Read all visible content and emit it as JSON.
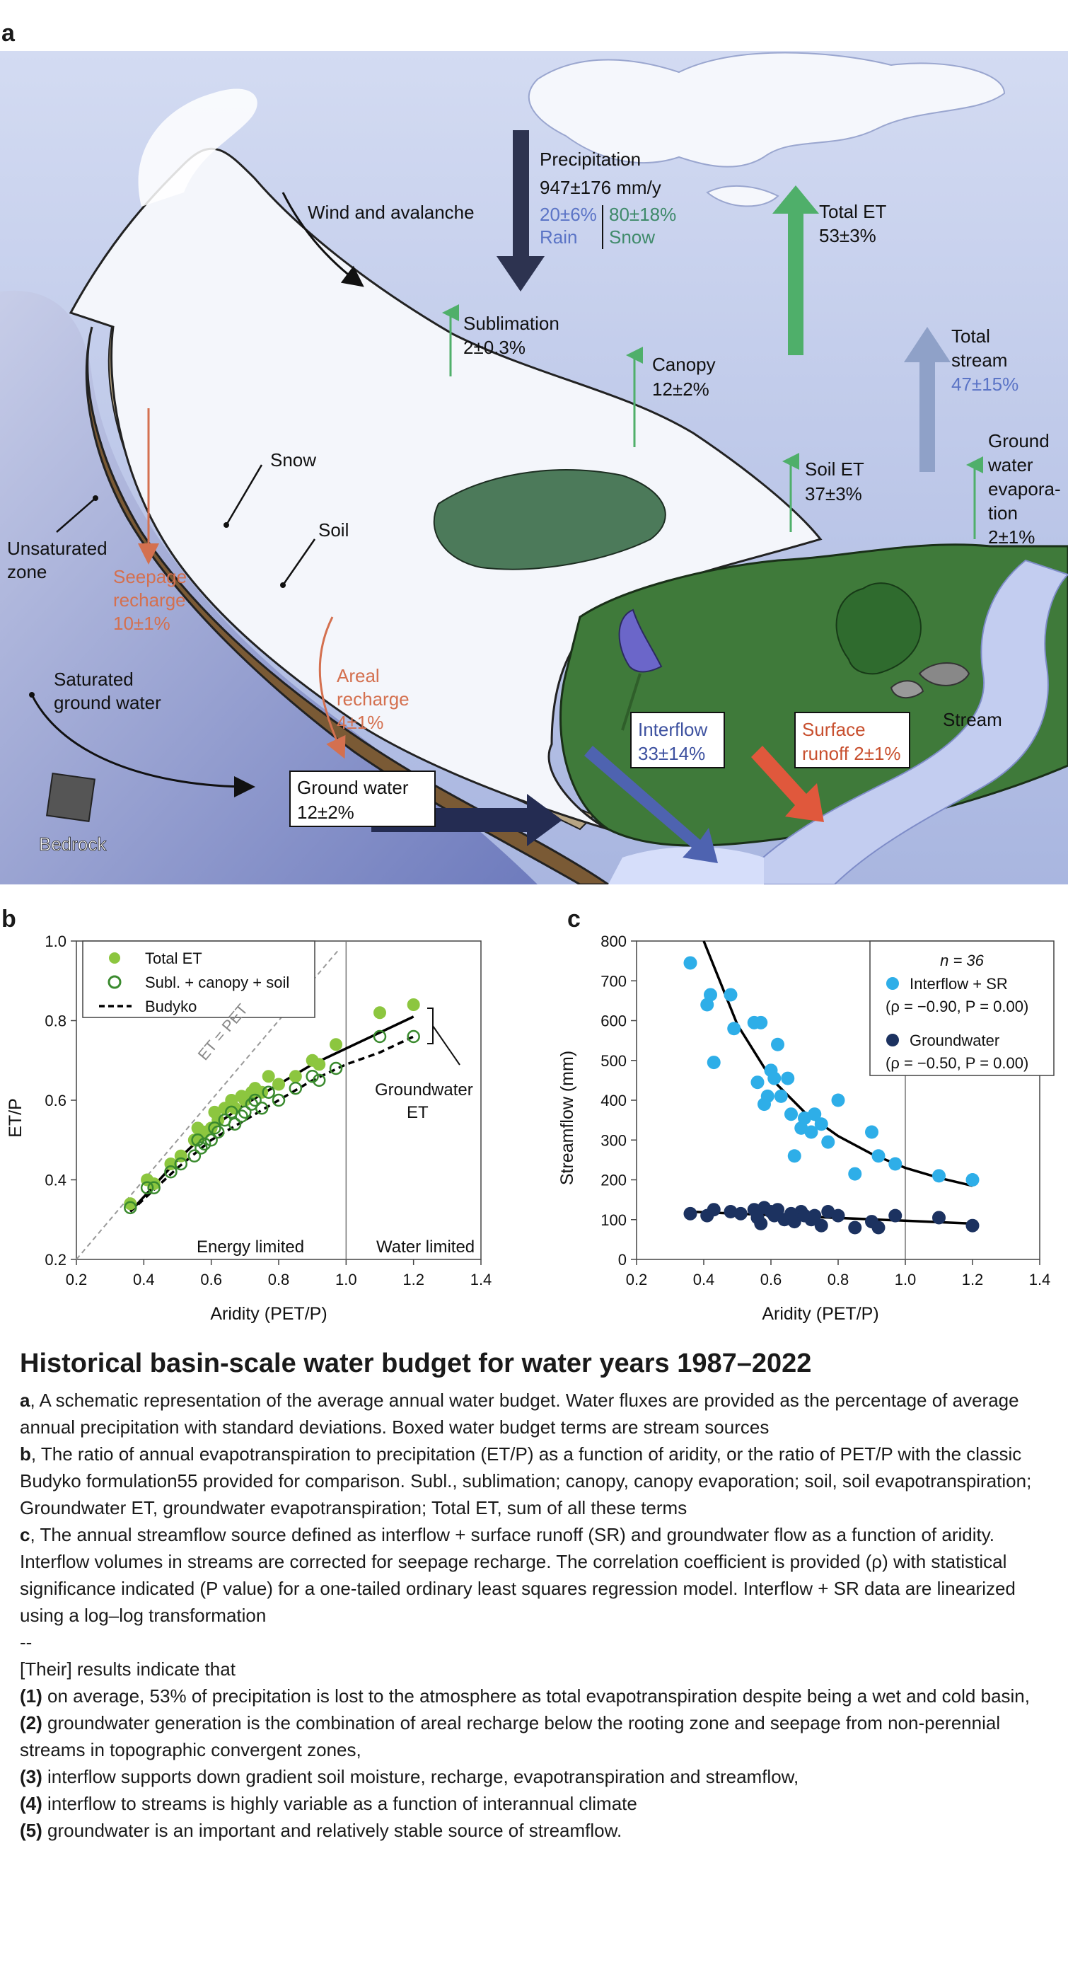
{
  "panel_labels": {
    "a": "a",
    "b": "b",
    "c": "c"
  },
  "schematic": {
    "precipitation": {
      "label": "Precipitation",
      "value": "947±176 mm/y",
      "rain_pct": "20±6%",
      "rain_label": "Rain",
      "snow_pct": "80±18%",
      "snow_label": "Snow"
    },
    "wind": "Wind and avalanche",
    "sublimation": {
      "label": "Sublimation",
      "value": "2±0.3%"
    },
    "canopy": {
      "label": "Canopy",
      "value": "12±2%"
    },
    "total_et": {
      "label": "Total ET",
      "value": "53±3%"
    },
    "total_stream": {
      "label_1": "Total",
      "label_2": "stream",
      "value": "47±15%"
    },
    "soil_et": {
      "label": "Soil ET",
      "value": "37±3%"
    },
    "gw_evap": {
      "l1": "Ground",
      "l2": "water",
      "l3": "evapora-",
      "l4": "tion",
      "value": "2±1%"
    },
    "snow": "Snow",
    "soil": "Soil",
    "unsat": {
      "l1": "Unsaturated",
      "l2": "zone"
    },
    "seepage": {
      "l1": "Seepage",
      "l2": "recharge",
      "value": "10±1%"
    },
    "areal": {
      "l1": "Areal",
      "l2": "recharge",
      "value": "4±1%"
    },
    "saturated": {
      "l1": "Saturated",
      "l2": "ground water"
    },
    "interflow": {
      "label": "Interflow",
      "value": "33±14%"
    },
    "surface": {
      "l1": "Surface",
      "l2": "runoff 2±1%"
    },
    "stream": "Stream",
    "groundwater": {
      "label": "Ground water",
      "value": "12±2%"
    },
    "bedrock": "Bedrock",
    "colors": {
      "sky": "#b9c4e6",
      "snow": "#f4f6fb",
      "soil": "#7a5a35",
      "grass": "#3f7a3a",
      "precip": "#2d3350",
      "et": "#4faf6a",
      "stream_arrow": "#8fa1c8",
      "interflow": "#4e63b0",
      "runoff": "#e0583c",
      "gw": "#242c52",
      "recharge_text": "#d4704f",
      "value_blue": "#5b74c6",
      "snow_green": "#3f8a6a"
    }
  },
  "chart_data": [
    {
      "type": "scatter",
      "xlabel": "Aridity (PET/P)",
      "ylabel": "ET/P",
      "xlim": [
        0.2,
        1.4
      ],
      "ylim": [
        0.2,
        1.0
      ],
      "xticks": [
        "0.2",
        "0.4",
        "0.6",
        "0.8",
        "1.0",
        "1.2",
        "1.4"
      ],
      "yticks": [
        "0.2",
        "0.4",
        "0.6",
        "0.8",
        "1.0"
      ],
      "legend": [
        "Total ET",
        "Subl. + canopy + soil",
        "Budyko"
      ],
      "legend_position": "top-left",
      "annotations": {
        "et_pet": "ET = PET",
        "gw_et_1": "Groundwater",
        "gw_et_2": "ET",
        "energy": "Energy limited",
        "water": "Water limited"
      },
      "series": [
        {
          "name": "Total ET",
          "marker": "filled",
          "color": "#8cc63f",
          "x": [
            0.36,
            0.41,
            0.43,
            0.48,
            0.51,
            0.55,
            0.56,
            0.57,
            0.58,
            0.6,
            0.61,
            0.62,
            0.64,
            0.66,
            0.67,
            0.69,
            0.7,
            0.72,
            0.73,
            0.75,
            0.77,
            0.8,
            0.85,
            0.9,
            0.92,
            0.97,
            1.1,
            1.2
          ],
          "y": [
            0.34,
            0.4,
            0.39,
            0.44,
            0.46,
            0.5,
            0.53,
            0.51,
            0.52,
            0.53,
            0.57,
            0.55,
            0.58,
            0.6,
            0.58,
            0.61,
            0.6,
            0.62,
            0.63,
            0.62,
            0.66,
            0.64,
            0.66,
            0.7,
            0.69,
            0.74,
            0.82,
            0.84
          ]
        },
        {
          "name": "Subl. + canopy + soil",
          "marker": "open",
          "color": "#3a8a2e",
          "x": [
            0.36,
            0.41,
            0.43,
            0.48,
            0.51,
            0.55,
            0.56,
            0.57,
            0.58,
            0.6,
            0.61,
            0.62,
            0.64,
            0.66,
            0.67,
            0.69,
            0.7,
            0.72,
            0.73,
            0.75,
            0.77,
            0.8,
            0.85,
            0.9,
            0.92,
            0.97,
            1.1,
            1.2
          ],
          "y": [
            0.33,
            0.38,
            0.38,
            0.42,
            0.44,
            0.46,
            0.5,
            0.48,
            0.49,
            0.5,
            0.53,
            0.52,
            0.55,
            0.57,
            0.54,
            0.56,
            0.57,
            0.59,
            0.6,
            0.58,
            0.62,
            0.6,
            0.63,
            0.66,
            0.65,
            0.68,
            0.76,
            0.76
          ]
        },
        {
          "name": "Budyko",
          "marker": "line",
          "color": "#000000",
          "x": [
            0.36,
            0.5,
            0.6,
            0.7,
            0.8,
            0.9,
            1.0,
            1.1,
            1.2
          ],
          "y": [
            0.32,
            0.43,
            0.5,
            0.55,
            0.6,
            0.65,
            0.69,
            0.72,
            0.76
          ]
        },
        {
          "name": "Total ET fit",
          "marker": "line",
          "color": "#000000",
          "x": [
            0.36,
            0.5,
            0.6,
            0.7,
            0.8,
            0.9,
            1.0,
            1.1,
            1.2
          ],
          "y": [
            0.32,
            0.45,
            0.53,
            0.59,
            0.64,
            0.69,
            0.73,
            0.77,
            0.81
          ]
        }
      ]
    },
    {
      "type": "scatter",
      "xlabel": "Aridity (PET/P)",
      "ylabel": "Streamflow (mm)",
      "xlim": [
        0.2,
        1.4
      ],
      "ylim": [
        0,
        800
      ],
      "xticks": [
        "0.2",
        "0.4",
        "0.6",
        "0.8",
        "1.0",
        "1.2",
        "1.4"
      ],
      "yticks": [
        "0",
        "100",
        "200",
        "300",
        "400",
        "500",
        "600",
        "700",
        "800"
      ],
      "legend_position": "top-right",
      "legend_n": "n = 36",
      "legend": [
        {
          "name": "Interflow + SR",
          "stat": "(ρ = −0.90, P = 0.00)"
        },
        {
          "name": "Groundwater",
          "stat": "(ρ = −0.50, P = 0.00)"
        }
      ],
      "series": [
        {
          "name": "Interflow + SR",
          "color": "#2eaee8",
          "x": [
            0.36,
            0.41,
            0.42,
            0.43,
            0.48,
            0.49,
            0.55,
            0.56,
            0.57,
            0.58,
            0.59,
            0.6,
            0.61,
            0.62,
            0.63,
            0.65,
            0.66,
            0.67,
            0.69,
            0.7,
            0.72,
            0.73,
            0.75,
            0.77,
            0.8,
            0.85,
            0.9,
            0.92,
            0.97,
            1.1,
            1.2
          ],
          "y": [
            745,
            640,
            665,
            495,
            665,
            580,
            595,
            445,
            595,
            390,
            410,
            475,
            455,
            540,
            410,
            455,
            365,
            260,
            330,
            355,
            320,
            365,
            340,
            295,
            400,
            215,
            320,
            260,
            240,
            210,
            200
          ]
        },
        {
          "name": "Groundwater",
          "color": "#1c3260",
          "x": [
            0.36,
            0.41,
            0.43,
            0.48,
            0.51,
            0.55,
            0.56,
            0.57,
            0.58,
            0.6,
            0.61,
            0.62,
            0.64,
            0.66,
            0.67,
            0.69,
            0.7,
            0.72,
            0.73,
            0.75,
            0.77,
            0.8,
            0.85,
            0.9,
            0.92,
            0.97,
            1.1,
            1.2
          ],
          "y": [
            115,
            110,
            125,
            120,
            115,
            125,
            105,
            90,
            130,
            120,
            110,
            125,
            100,
            115,
            95,
            120,
            110,
            100,
            110,
            85,
            120,
            110,
            80,
            95,
            80,
            110,
            105,
            85
          ]
        },
        {
          "name": "Interflow + SR fit",
          "color": "#000000",
          "x": [
            0.4,
            0.5,
            0.6,
            0.7,
            0.8,
            0.9,
            1.0,
            1.1,
            1.2
          ],
          "y": [
            800,
            590,
            455,
            370,
            310,
            265,
            230,
            205,
            185
          ]
        },
        {
          "name": "Groundwater fit",
          "color": "#000000",
          "x": [
            0.36,
            1.2
          ],
          "y": [
            120,
            90
          ]
        }
      ]
    }
  ],
  "caption": {
    "title": "Historical basin-scale water budget for water years 1987–2022",
    "a_label": "a",
    "a_text": ", A schematic representation of the average annual water budget. Water fluxes are provided as the percentage of average annual precipitation with standard deviations. Boxed water budget terms are stream sources",
    "b_label": "b",
    "b_text": ", The ratio of annual evapotranspiration to precipitation (ET/P) as a function of aridity, or the ratio of PET/P with the classic Budyko formulation55 provided for comparison. Subl., sublimation; canopy, canopy evaporation; soil, soil evapotranspiration; Groundwater ET, groundwater evapotranspiration; Total ET, sum of all these terms",
    "c_label": "c",
    "c_text": ", The annual streamflow source defined as interflow + surface runoff (SR) and groundwater flow as a function of aridity. Interflow volumes in streams are corrected for seepage recharge. The correlation coefficient is provided (ρ) with statistical significance indicated (P value) for a one-tailed ordinary least squares regression model. Interflow + SR data are linearized using a log–log transformation",
    "separator": "--",
    "intro": "[Their] results indicate that",
    "items": [
      {
        "num": "(1)",
        "text": " on average, 53% of precipitation is lost to the atmosphere as total evapotranspiration despite being a wet and cold basin,"
      },
      {
        "num": "(2)",
        "text": " groundwater generation is the combination of areal recharge below the rooting zone and seepage from non-perennial streams in topographic convergent zones,"
      },
      {
        "num": "(3)",
        "text": " interflow supports down gradient soil moisture, recharge, evapotranspiration and streamflow,"
      },
      {
        "num": "(4)",
        "text": " interflow to streams is highly variable as a function of interannual climate"
      },
      {
        "num": "(5)",
        "text": " groundwater is an important and relatively stable source of streamflow."
      }
    ]
  }
}
